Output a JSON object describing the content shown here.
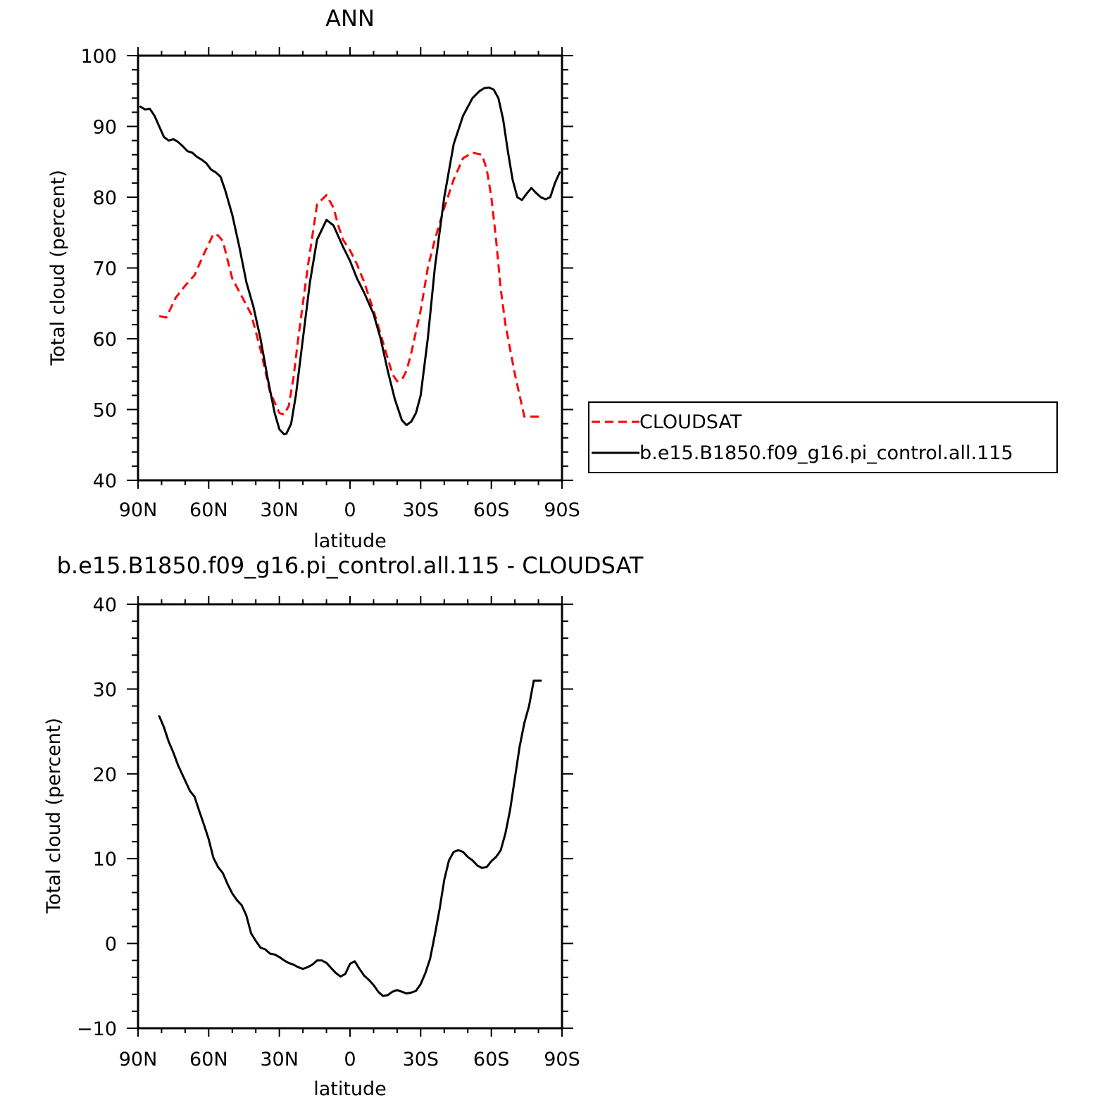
{
  "chart_data": [
    {
      "type": "line",
      "title": "ANN",
      "xlabel": "latitude",
      "ylabel": "Total cloud (percent)",
      "xlim": [
        90,
        -90
      ],
      "ylim": [
        40,
        100
      ],
      "xticks": [
        {
          "value": 90,
          "label": "90N"
        },
        {
          "value": 60,
          "label": "60N"
        },
        {
          "value": 30,
          "label": "30N"
        },
        {
          "value": 0,
          "label": "0"
        },
        {
          "value": -30,
          "label": "30S"
        },
        {
          "value": -60,
          "label": "60S"
        },
        {
          "value": -90,
          "label": "90S"
        }
      ],
      "yticks": [
        {
          "value": 40,
          "label": "40"
        },
        {
          "value": 50,
          "label": "50"
        },
        {
          "value": 60,
          "label": "60"
        },
        {
          "value": 70,
          "label": "70"
        },
        {
          "value": 80,
          "label": "80"
        },
        {
          "value": 90,
          "label": "90"
        },
        {
          "value": 100,
          "label": "100"
        }
      ],
      "legend_position": "right",
      "series": [
        {
          "name": "CLOUDSAT",
          "color": "#ff0000",
          "dash": "dashed",
          "x": [
            81,
            78,
            74,
            70,
            66,
            62,
            58,
            56,
            54,
            50,
            46,
            42,
            38,
            34,
            30,
            28,
            26,
            24,
            22,
            18,
            14,
            10,
            7,
            5,
            3,
            0,
            -3,
            -6,
            -10,
            -14,
            -18,
            -20,
            -22,
            -24,
            -26,
            -28,
            -30,
            -33,
            -36,
            -40,
            -44,
            -48,
            -52,
            -56,
            -58,
            -60,
            -62,
            -64,
            -66,
            -68,
            -70,
            -72,
            -74,
            -76,
            -78,
            -80,
            -81
          ],
          "y": [
            63.2,
            63.0,
            65.8,
            67.5,
            69.0,
            72.0,
            74.8,
            74.6,
            73.8,
            68.5,
            66.0,
            63.5,
            58.5,
            52.5,
            49.5,
            49.3,
            50.5,
            54.5,
            60.0,
            70.0,
            79.0,
            80.3,
            78.5,
            76.0,
            74.0,
            72.5,
            70.5,
            68.0,
            64.0,
            59.5,
            55.0,
            54.0,
            54.2,
            55.5,
            58.0,
            61.0,
            64.0,
            70.0,
            74.0,
            78.5,
            82.5,
            85.5,
            86.3,
            86.0,
            84.0,
            80.0,
            74.0,
            67.0,
            62.0,
            58.5,
            55.0,
            52.0,
            49.0,
            49.0,
            49.0,
            49.0,
            49.0
          ]
        },
        {
          "name": "b.e15.B1850.f09_g16.pi_control.all.115",
          "color": "#000000",
          "dash": "solid",
          "x": [
            89,
            87,
            85,
            83,
            81,
            79,
            77,
            75,
            73,
            71,
            69,
            67,
            65,
            63,
            61,
            59,
            57,
            55,
            53,
            50,
            47,
            44,
            41,
            38,
            35,
            32,
            30,
            28,
            27,
            25,
            23,
            20,
            17,
            14,
            10,
            7,
            5,
            3,
            0,
            -3,
            -6,
            -10,
            -13,
            -16,
            -19,
            -22,
            -24,
            -26,
            -28,
            -30,
            -33,
            -36,
            -40,
            -44,
            -48,
            -52,
            -55,
            -57,
            -59,
            -61,
            -63,
            -65,
            -67,
            -69,
            -71,
            -73,
            -75,
            -77,
            -79,
            -81,
            -83,
            -85,
            -87,
            -89
          ],
          "y": [
            92.8,
            92.4,
            92.5,
            91.5,
            90.0,
            88.5,
            88.0,
            88.2,
            87.8,
            87.2,
            86.5,
            86.3,
            85.7,
            85.3,
            84.8,
            83.9,
            83.5,
            82.9,
            81.0,
            77.5,
            73.0,
            68.0,
            64.5,
            60.0,
            54.5,
            49.5,
            47.2,
            46.5,
            46.6,
            48.0,
            52.0,
            60.0,
            68.0,
            74.0,
            76.8,
            76.0,
            74.5,
            73.0,
            71.0,
            68.5,
            66.5,
            63.5,
            60.0,
            55.5,
            51.5,
            48.5,
            47.8,
            48.3,
            49.5,
            52.0,
            60.0,
            70.0,
            80.0,
            87.5,
            91.5,
            94.0,
            95.0,
            95.4,
            95.5,
            95.2,
            94.0,
            91.0,
            86.5,
            82.5,
            80.0,
            79.6,
            80.5,
            81.3,
            80.6,
            80.0,
            79.7,
            80.0,
            82.0,
            83.5
          ]
        }
      ]
    },
    {
      "type": "line",
      "title": "b.e15.B1850.f09_g16.pi_control.all.115 - CLOUDSAT",
      "xlabel": "latitude",
      "ylabel": "Total cloud (percent)",
      "xlim": [
        90,
        -90
      ],
      "ylim": [
        -10,
        40
      ],
      "xticks": [
        {
          "value": 90,
          "label": "90N"
        },
        {
          "value": 60,
          "label": "60N"
        },
        {
          "value": 30,
          "label": "30N"
        },
        {
          "value": 0,
          "label": "0"
        },
        {
          "value": -30,
          "label": "30S"
        },
        {
          "value": -60,
          "label": "60S"
        },
        {
          "value": -90,
          "label": "90S"
        }
      ],
      "yticks": [
        {
          "value": -10,
          "label": "−10"
        },
        {
          "value": 0,
          "label": "0"
        },
        {
          "value": 10,
          "label": "10"
        },
        {
          "value": 20,
          "label": "20"
        },
        {
          "value": 30,
          "label": "30"
        },
        {
          "value": 40,
          "label": "40"
        }
      ],
      "series": [
        {
          "color": "#000000",
          "dash": "solid",
          "x": [
            81,
            79,
            77,
            75,
            73,
            70,
            68,
            66,
            64,
            62,
            60,
            58,
            56,
            54,
            52,
            50,
            48,
            46,
            44,
            42,
            40,
            38,
            36,
            34,
            32,
            30,
            28,
            26,
            24,
            22,
            20,
            18,
            16,
            14,
            12,
            10,
            8,
            6,
            4,
            2,
            0,
            -2,
            -4,
            -6,
            -8,
            -10,
            -12,
            -14,
            -16,
            -18,
            -20,
            -22,
            -24,
            -26,
            -28,
            -30,
            -32,
            -34,
            -36,
            -38,
            -40,
            -42,
            -44,
            -46,
            -48,
            -50,
            -52,
            -54,
            -56,
            -58,
            -60,
            -62,
            -64,
            -66,
            -68,
            -70,
            -72,
            -74,
            -76,
            -78,
            -80,
            -81
          ],
          "y": [
            26.8,
            25.5,
            23.8,
            22.5,
            21.0,
            19.2,
            18.0,
            17.3,
            15.6,
            14.0,
            12.3,
            10.1,
            9.0,
            8.3,
            7.0,
            5.9,
            5.1,
            4.5,
            3.3,
            1.2,
            0.3,
            -0.5,
            -0.7,
            -1.2,
            -1.3,
            -1.6,
            -2.0,
            -2.3,
            -2.5,
            -2.8,
            -3.0,
            -2.8,
            -2.5,
            -2.0,
            -2.0,
            -2.3,
            -2.9,
            -3.5,
            -3.9,
            -3.6,
            -2.4,
            -2.1,
            -3.0,
            -3.8,
            -4.3,
            -4.9,
            -5.7,
            -6.2,
            -6.1,
            -5.7,
            -5.5,
            -5.7,
            -5.9,
            -5.8,
            -5.6,
            -4.8,
            -3.5,
            -1.8,
            1.0,
            4.0,
            7.5,
            9.8,
            10.8,
            11.0,
            10.8,
            10.2,
            9.8,
            9.2,
            8.9,
            9.0,
            9.7,
            10.2,
            11.0,
            13.0,
            15.8,
            19.5,
            23.2,
            26.0,
            28.0,
            31.0,
            31.0,
            31.0
          ]
        }
      ]
    }
  ]
}
